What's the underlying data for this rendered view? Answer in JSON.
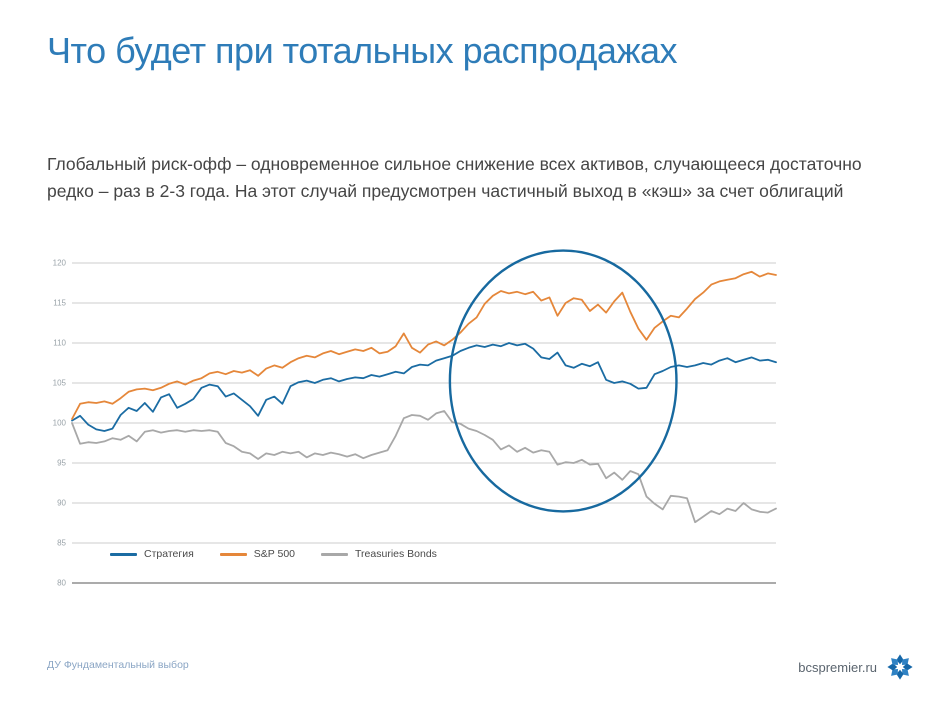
{
  "slide": {
    "title": "Что будет при тотальных распродажах",
    "subtitle_line1": "Глобальный риск-офф – одновременное сильное снижение всех активов, случающееся достаточно",
    "subtitle_line2": "редко – раз в 2-3 года. На этот случай предусмотрен частичный выход в «кэш» за счет облигаций",
    "footer_left": "ДУ Фундаментальный выбор",
    "footer_right": "bcspremier.ru"
  },
  "colors": {
    "title": "#2e7cb8",
    "body_text": "#454545",
    "grid": "#cdcdcd",
    "axis_line": "#8f8f8f",
    "tick_label": "#9aa3a9",
    "annotation": "#17699f",
    "footer_left": "#8aa5c4",
    "footer_right": "#5a646e",
    "logo_blue_dark": "#1667a8",
    "logo_blue_light": "#2f82c4"
  },
  "chart_data": {
    "type": "line",
    "title": "",
    "xlabel": "",
    "ylabel": "",
    "ylim": [
      80,
      120
    ],
    "yticks": [
      80,
      85,
      90,
      95,
      100,
      105,
      110,
      115,
      120
    ],
    "grid": "horizontal",
    "legend_position": "bottom-left-inside",
    "x_count": 88,
    "series": [
      {
        "name": "Стратегия",
        "color": "#1b6ca3",
        "values": [
          100.3,
          100.9,
          99.8,
          99.2,
          99.0,
          99.3,
          101.0,
          101.9,
          101.5,
          102.5,
          101.4,
          103.2,
          103.6,
          101.9,
          102.4,
          103.0,
          104.4,
          104.8,
          104.6,
          103.3,
          103.7,
          102.9,
          102.1,
          100.9,
          102.9,
          103.3,
          102.4,
          104.6,
          105.1,
          105.3,
          105.0,
          105.4,
          105.6,
          105.2,
          105.5,
          105.7,
          105.6,
          106.0,
          105.8,
          106.1,
          106.4,
          106.2,
          107.0,
          107.3,
          107.2,
          107.8,
          108.1,
          108.4,
          109.0,
          109.4,
          109.7,
          109.5,
          109.8,
          109.6,
          110.0,
          109.7,
          109.9,
          109.3,
          108.2,
          108.0,
          108.8,
          107.2,
          106.9,
          107.4,
          107.1,
          107.6,
          105.4,
          105.0,
          105.2,
          104.9,
          104.3,
          104.4,
          106.1,
          106.5,
          107.0,
          107.2,
          107.0,
          107.2,
          107.5,
          107.3,
          107.8,
          108.1,
          107.6,
          107.9,
          108.2,
          107.8,
          107.9,
          107.6
        ]
      },
      {
        "name": "S&P 500",
        "color": "#e5873a",
        "values": [
          100.5,
          102.4,
          102.6,
          102.5,
          102.7,
          102.4,
          103.1,
          103.9,
          104.2,
          104.3,
          104.1,
          104.4,
          104.9,
          105.2,
          104.8,
          105.3,
          105.6,
          106.2,
          106.4,
          106.1,
          106.5,
          106.3,
          106.6,
          105.9,
          106.8,
          107.2,
          106.9,
          107.6,
          108.1,
          108.4,
          108.2,
          108.7,
          109.0,
          108.6,
          108.9,
          109.2,
          109.0,
          109.4,
          108.7,
          108.9,
          109.6,
          111.2,
          109.4,
          108.8,
          109.8,
          110.2,
          109.7,
          110.4,
          111.3,
          112.4,
          113.2,
          114.9,
          115.9,
          116.5,
          116.2,
          116.4,
          116.1,
          116.4,
          115.3,
          115.7,
          113.4,
          115.0,
          115.6,
          115.4,
          114.0,
          114.8,
          113.8,
          115.2,
          116.3,
          113.9,
          111.8,
          110.4,
          111.9,
          112.7,
          113.4,
          113.2,
          114.3,
          115.5,
          116.3,
          117.3,
          117.7,
          117.9,
          118.1,
          118.6,
          118.9,
          118.3,
          118.7,
          118.5
        ]
      },
      {
        "name": "Treasuries Bonds",
        "color": "#a8a8a8",
        "values": [
          100.0,
          97.4,
          97.6,
          97.5,
          97.7,
          98.1,
          97.9,
          98.4,
          97.7,
          98.9,
          99.1,
          98.8,
          99.0,
          99.1,
          98.9,
          99.1,
          99.0,
          99.1,
          98.9,
          97.5,
          97.1,
          96.4,
          96.2,
          95.5,
          96.2,
          96.0,
          96.4,
          96.2,
          96.4,
          95.7,
          96.2,
          96.0,
          96.3,
          96.1,
          95.8,
          96.1,
          95.6,
          96.0,
          96.3,
          96.6,
          98.4,
          100.6,
          101.0,
          100.9,
          100.4,
          101.2,
          101.5,
          100.1,
          99.9,
          99.3,
          99.0,
          98.5,
          97.9,
          96.7,
          97.2,
          96.4,
          96.9,
          96.3,
          96.6,
          96.4,
          94.8,
          95.1,
          95.0,
          95.4,
          94.8,
          94.9,
          93.1,
          93.8,
          92.9,
          94.0,
          93.6,
          90.8,
          89.9,
          89.2,
          90.9,
          90.8,
          90.6,
          87.6,
          88.3,
          89.0,
          88.6,
          89.3,
          89.0,
          90.0,
          89.2,
          88.9,
          88.8,
          89.3
        ]
      }
    ],
    "annotation_ellipse": {
      "cx_index": 60.7,
      "cy_value": 105.25,
      "rx_index": 14,
      "ry_value": 16.3
    }
  }
}
